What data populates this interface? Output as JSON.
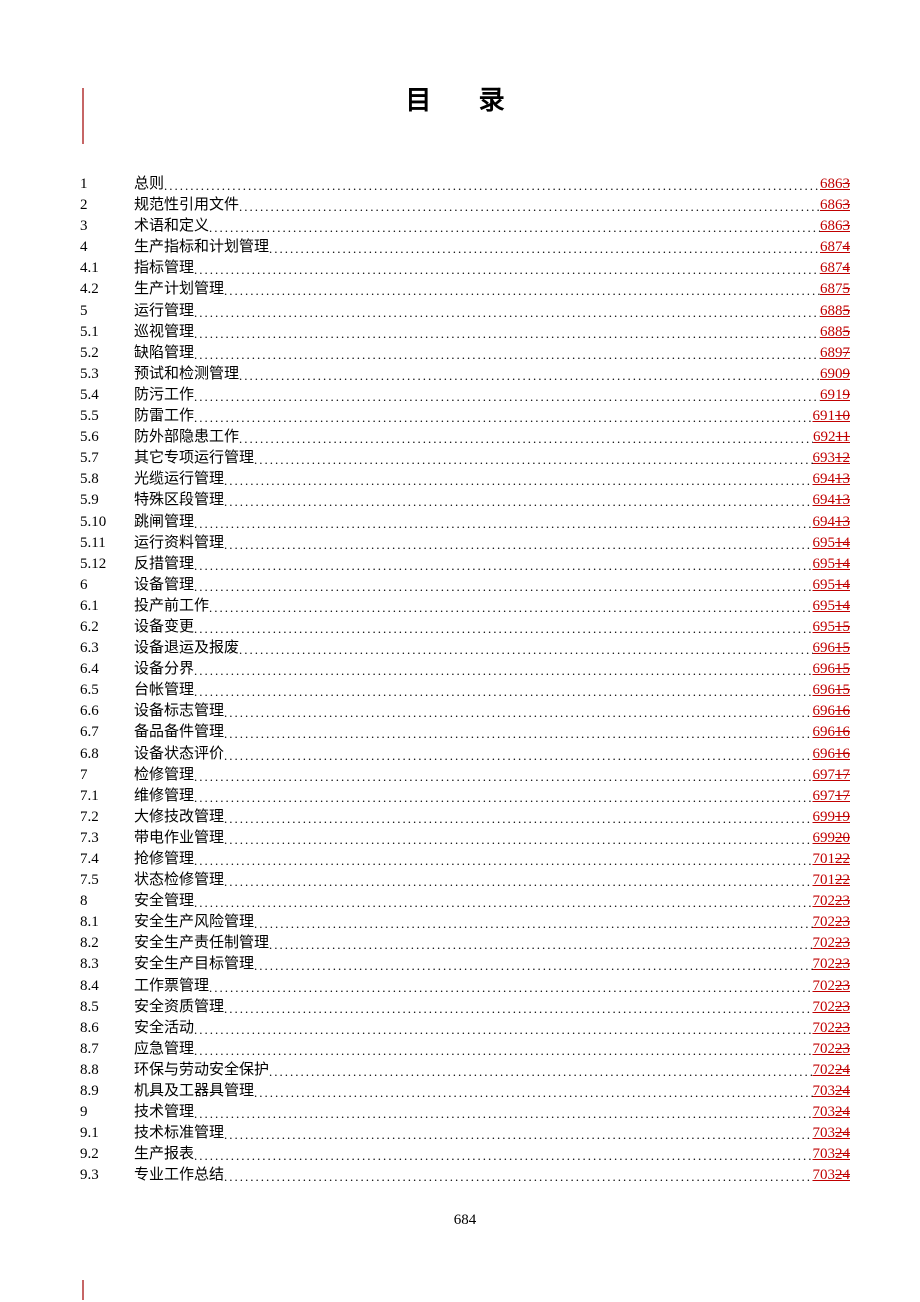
{
  "title": "目 录",
  "page_number": "684",
  "colors": {
    "page_link": "#c00000",
    "text": "#000000",
    "margin_mark": "#a00000"
  },
  "toc": [
    {
      "num": "1",
      "label": "总则",
      "page": "686",
      "strike": "3"
    },
    {
      "num": "2",
      "label": "规范性引用文件",
      "page": "686",
      "strike": "3"
    },
    {
      "num": "3",
      "label": "术语和定义",
      "page": "686",
      "strike": "3"
    },
    {
      "num": "4",
      "label": "生产指标和计划管理",
      "page": "687",
      "strike": "4"
    },
    {
      "num": "4.1",
      "label": "指标管理",
      "page": "687",
      "strike": "4"
    },
    {
      "num": "4.2",
      "label": "生产计划管理",
      "page": "687",
      "strike": "5"
    },
    {
      "num": "5",
      "label": "运行管理",
      "page": "688",
      "strike": "5"
    },
    {
      "num": "5.1",
      "label": "巡视管理",
      "page": "688",
      "strike": "5"
    },
    {
      "num": "5.2",
      "label": "缺陷管理",
      "page": "689",
      "strike": "7"
    },
    {
      "num": "5.3",
      "label": "预试和检测管理",
      "page": "690",
      "strike": "9"
    },
    {
      "num": "5.4",
      "label": "防污工作",
      "page": "691",
      "strike": "9"
    },
    {
      "num": "5.5",
      "label": "防雷工作",
      "page": "691",
      "strike": "10"
    },
    {
      "num": "5.6",
      "label": "防外部隐患工作",
      "page": "692",
      "strike": "11"
    },
    {
      "num": "5.7",
      "label": "其它专项运行管理",
      "page": "693",
      "strike": "12"
    },
    {
      "num": "5.8",
      "label": "光缆运行管理",
      "page": "694",
      "strike": "13"
    },
    {
      "num": "5.9",
      "label": "特殊区段管理",
      "page": "694",
      "strike": "13"
    },
    {
      "num": "5.10",
      "label": "跳闸管理",
      "page": "694",
      "strike": "13"
    },
    {
      "num": "5.11",
      "label": "运行资料管理",
      "page": "695",
      "strike": "14"
    },
    {
      "num": "5.12",
      "label": "反措管理",
      "page": "695",
      "strike": "14"
    },
    {
      "num": "6",
      "label": "设备管理",
      "page": "695",
      "strike": "14"
    },
    {
      "num": "6.1",
      "label": "投产前工作",
      "page": "695",
      "strike": "14"
    },
    {
      "num": "6.2",
      "label": "设备变更",
      "page": "695",
      "strike": "15"
    },
    {
      "num": "6.3",
      "label": "设备退运及报废",
      "page": "696",
      "strike": "15"
    },
    {
      "num": "6.4",
      "label": "设备分界",
      "page": "696",
      "strike": "15"
    },
    {
      "num": "6.5",
      "label": "台帐管理",
      "page": "696",
      "strike": "15"
    },
    {
      "num": "6.6",
      "label": "设备标志管理",
      "page": "696",
      "strike": "16"
    },
    {
      "num": "6.7",
      "label": "备品备件管理",
      "page": "696",
      "strike": "16"
    },
    {
      "num": "6.8",
      "label": "设备状态评价",
      "page": "696",
      "strike": "16"
    },
    {
      "num": "7",
      "label": "检修管理",
      "page": "697",
      "strike": "17"
    },
    {
      "num": "7.1",
      "label": "维修管理",
      "page": "697",
      "strike": "17"
    },
    {
      "num": "7.2",
      "label": "大修技改管理",
      "page": "699",
      "strike": "19"
    },
    {
      "num": "7.3",
      "label": "带电作业管理",
      "page": "699",
      "strike": "20"
    },
    {
      "num": "7.4",
      "label": "抢修管理",
      "page": "701",
      "strike": "22"
    },
    {
      "num": "7.5",
      "label": "状态检修管理",
      "page": "701",
      "strike": "22"
    },
    {
      "num": "8",
      "label": "安全管理",
      "page": "702",
      "strike": "23"
    },
    {
      "num": "8.1",
      "label": "安全生产风险管理",
      "page": "702",
      "strike": "23"
    },
    {
      "num": "8.2",
      "label": "安全生产责任制管理",
      "page": "702",
      "strike": "23"
    },
    {
      "num": "8.3",
      "label": "安全生产目标管理",
      "page": "702",
      "strike": "23"
    },
    {
      "num": "8.4",
      "label": "工作票管理",
      "page": "702",
      "strike": "23"
    },
    {
      "num": "8.5",
      "label": "安全资质管理",
      "page": "702",
      "strike": "23"
    },
    {
      "num": "8.6",
      "label": "安全活动",
      "page": "702",
      "strike": "23"
    },
    {
      "num": "8.7",
      "label": "应急管理",
      "page": "702",
      "strike": "23"
    },
    {
      "num": "8.8",
      "label": "环保与劳动安全保护",
      "page": "702",
      "strike": "24"
    },
    {
      "num": "8.9",
      "label": "机具及工器具管理",
      "page": "703",
      "strike": "24"
    },
    {
      "num": "9",
      "label": "技术管理",
      "page": "703",
      "strike": "24"
    },
    {
      "num": "9.1",
      "label": "技术标准管理",
      "page": "703",
      "strike": "24"
    },
    {
      "num": "9.2",
      "label": "生产报表",
      "page": "703",
      "strike": "24"
    },
    {
      "num": "9.3",
      "label": "专业工作总结",
      "page": "703",
      "strike": "24"
    }
  ]
}
